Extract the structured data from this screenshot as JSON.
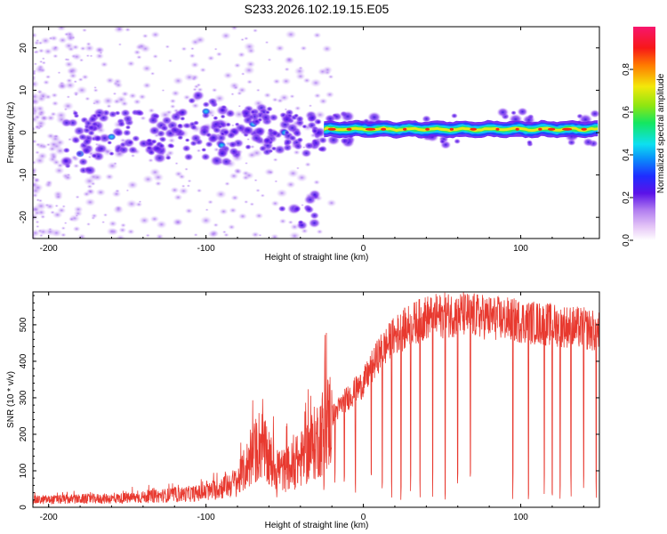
{
  "title": "S233.2026.102.19.15.E05",
  "chart_data": [
    {
      "type": "heatmap",
      "xlabel": "Height of straight line (km)",
      "ylabel": "Frequency (Hz)",
      "xlim": [
        -210,
        150
      ],
      "ylim": [
        -25,
        25
      ],
      "xticks": [
        -200,
        -100,
        0,
        100
      ],
      "yticks": [
        -20,
        -10,
        0,
        10,
        20
      ],
      "description_points": [
        {
          "x": -180,
          "y": -5,
          "amp": 0.35
        },
        {
          "x": -160,
          "y": -1,
          "amp": 0.3
        },
        {
          "x": -120,
          "y": -2,
          "amp": 0.25
        },
        {
          "x": -100,
          "y": 5,
          "amp": 0.3
        },
        {
          "x": -90,
          "y": -3,
          "amp": 0.35
        },
        {
          "x": -70,
          "y": 2,
          "amp": 0.3
        },
        {
          "x": -50,
          "y": 0,
          "amp": 0.45
        },
        {
          "x": -40,
          "y": -18,
          "amp": 0.2
        },
        {
          "x": -20,
          "y": 0.5,
          "amp": 0.85
        },
        {
          "x": 0,
          "y": 1,
          "amp": 0.7
        },
        {
          "x": 50,
          "y": 1,
          "amp": 0.95
        },
        {
          "x": 100,
          "y": 1,
          "amp": 0.9
        },
        {
          "x": 140,
          "y": 1,
          "amp": 0.85
        }
      ],
      "ridge": {
        "x_start": -25,
        "x_end": 150,
        "freq": 0.8
      },
      "colorbar": {
        "label": "Normalized spectral amplitude",
        "range": [
          0,
          1
        ],
        "ticks": [
          "0.0",
          "0.2",
          "0.4",
          "0.6",
          "0.8"
        ]
      }
    },
    {
      "type": "line",
      "xlabel": "Height of straight line (km)",
      "ylabel": "SNR (10 * v/v)",
      "xlim": [
        -210,
        150
      ],
      "ylim": [
        0,
        590
      ],
      "xticks": [
        -200,
        -100,
        0,
        100
      ],
      "yticks": [
        0,
        100,
        200,
        300,
        400,
        500
      ],
      "series": [
        {
          "name": "SNR",
          "color": "#e8392f",
          "x": [
            -210,
            -150,
            -100,
            -80,
            -65,
            -60,
            -50,
            -40,
            -30,
            -20,
            -10,
            0,
            10,
            20,
            30,
            40,
            60,
            80,
            100,
            120,
            140,
            150
          ],
          "values": [
            20,
            25,
            40,
            70,
            180,
            120,
            100,
            130,
            180,
            250,
            300,
            340,
            420,
            470,
            500,
            520,
            530,
            520,
            510,
            500,
            490,
            480
          ],
          "dips": [
            -55,
            -45,
            -25,
            -18,
            -12,
            -5,
            5,
            12,
            18,
            24,
            30,
            36,
            44,
            52,
            60,
            68,
            95,
            105,
            115,
            120,
            125,
            132,
            140,
            148
          ]
        }
      ]
    }
  ]
}
